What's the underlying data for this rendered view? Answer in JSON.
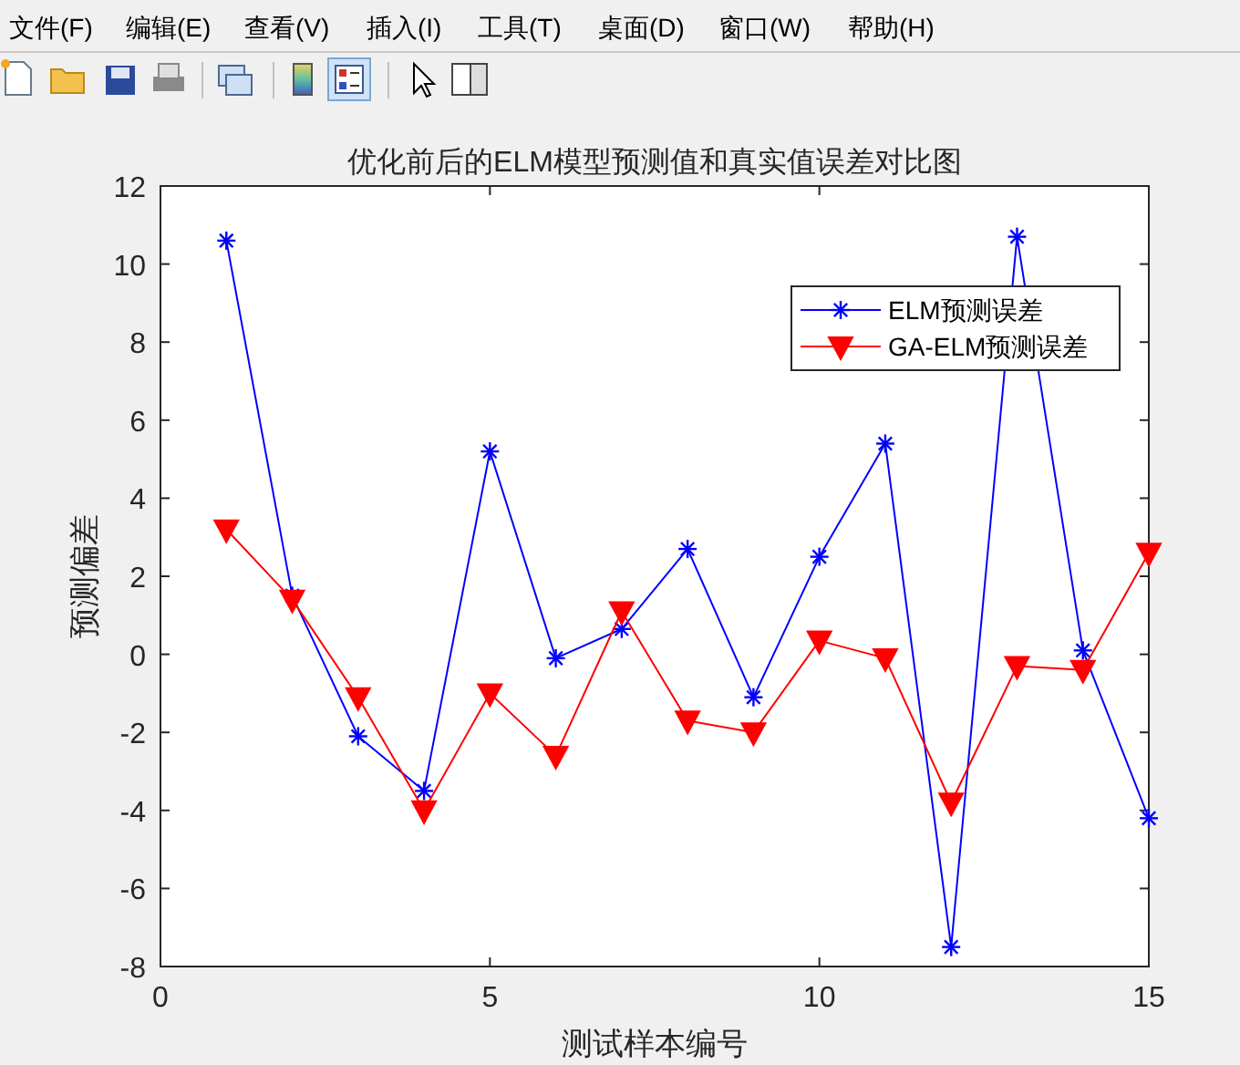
{
  "chart_data": {
    "type": "line",
    "title": "优化前后的ELM模型预测值和真实值误差对比图",
    "xlabel": "测试样本编号",
    "ylabel": "预测偏差",
    "x": [
      1,
      2,
      3,
      4,
      5,
      6,
      7,
      8,
      9,
      10,
      11,
      12,
      13,
      14,
      15
    ],
    "series": [
      {
        "name": "ELM预测误差",
        "color": "#0000ff",
        "marker": "cross",
        "values": [
          10.6,
          1.5,
          -2.1,
          -3.5,
          5.2,
          -0.1,
          0.65,
          2.7,
          -1.1,
          2.5,
          5.4,
          -7.5,
          10.7,
          0.1,
          -4.2
        ]
      },
      {
        "name": "GA-ELM预测误差",
        "color": "#ff0000",
        "marker": "triangle",
        "values": [
          3.2,
          1.4,
          -1.1,
          -4.0,
          -1.0,
          -2.6,
          1.1,
          -1.7,
          -2.0,
          0.35,
          -0.1,
          -3.8,
          -0.3,
          -0.4,
          2.6
        ]
      }
    ],
    "xlim": [
      0,
      15
    ],
    "xticks": [
      0,
      5,
      10,
      15
    ],
    "ylim": [
      -8,
      12
    ],
    "yticks": [
      -8,
      -6,
      -4,
      -2,
      0,
      2,
      4,
      6,
      8,
      10,
      12
    ],
    "grid": false,
    "legend": "top right",
    "line_style": "solid",
    "annotations": [
      "文件(F)",
      "编辑(E)",
      "查看(V)",
      "插入(I)",
      "工具(T)",
      "桌面(D)",
      "窗口(W)",
      "帮助(H)"
    ]
  }
}
